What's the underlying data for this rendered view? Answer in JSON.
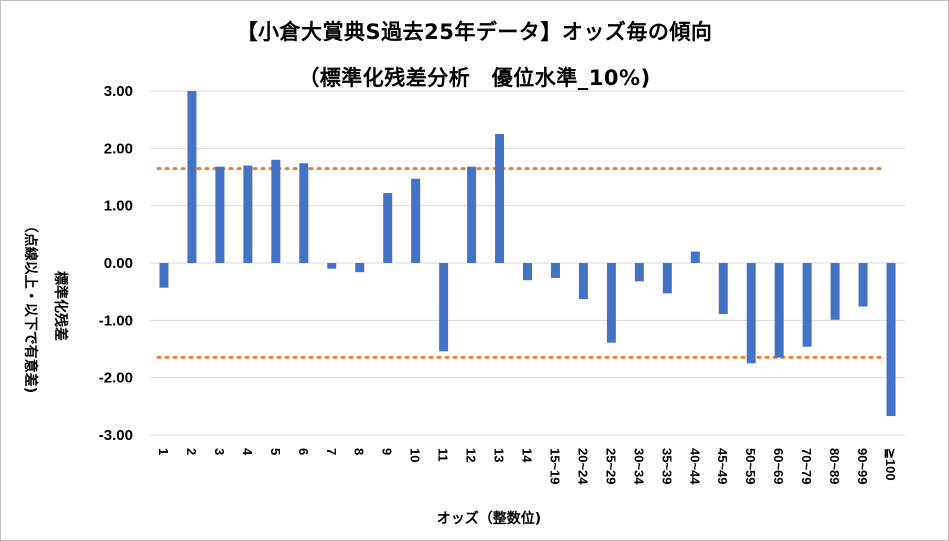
{
  "title_line1": "【小倉大賞典S過去25年データ】オッズ毎の傾向",
  "title_line2": "（標準化残差分析　優位水準_10%)",
  "chart_data": {
    "type": "bar",
    "title": "【小倉大賞典S過去25年データ】オッズ毎の傾向（標準化残差分析　優位水準_10%)",
    "xlabel": "オッズ（整数位)",
    "ylabel": "標準化残差",
    "ylabel_note": "（点線以上・以下で有意差)",
    "categories": [
      "1",
      "2",
      "3",
      "4",
      "5",
      "6",
      "7",
      "8",
      "9",
      "10",
      "11",
      "12",
      "13",
      "14",
      "15~19",
      "20~24",
      "25~29",
      "30~34",
      "35~39",
      "40~44",
      "45~49",
      "50~59",
      "60~69",
      "70~79",
      "80~89",
      "90~99",
      "≧100"
    ],
    "values": [
      -0.43,
      3.0,
      1.68,
      1.7,
      1.8,
      1.74,
      -0.1,
      -0.16,
      1.22,
      1.47,
      -1.54,
      1.68,
      2.25,
      -0.3,
      -0.26,
      -0.63,
      -1.39,
      -0.32,
      -0.53,
      0.2,
      -0.89,
      -1.75,
      -1.65,
      -1.46,
      -0.99,
      -0.76,
      -2.67
    ],
    "ylim": [
      -3.0,
      3.0
    ],
    "yticks": [
      "3.00",
      "2.00",
      "1.00",
      "0.00",
      "-1.00",
      "-2.00",
      "-3.00"
    ],
    "threshold_lines": [
      1.645,
      -1.645
    ],
    "grid": true,
    "legend": "none",
    "bar_color": "#4472C4",
    "threshold_color": "#ED7D31",
    "grid_color": "#d9d9d9"
  }
}
